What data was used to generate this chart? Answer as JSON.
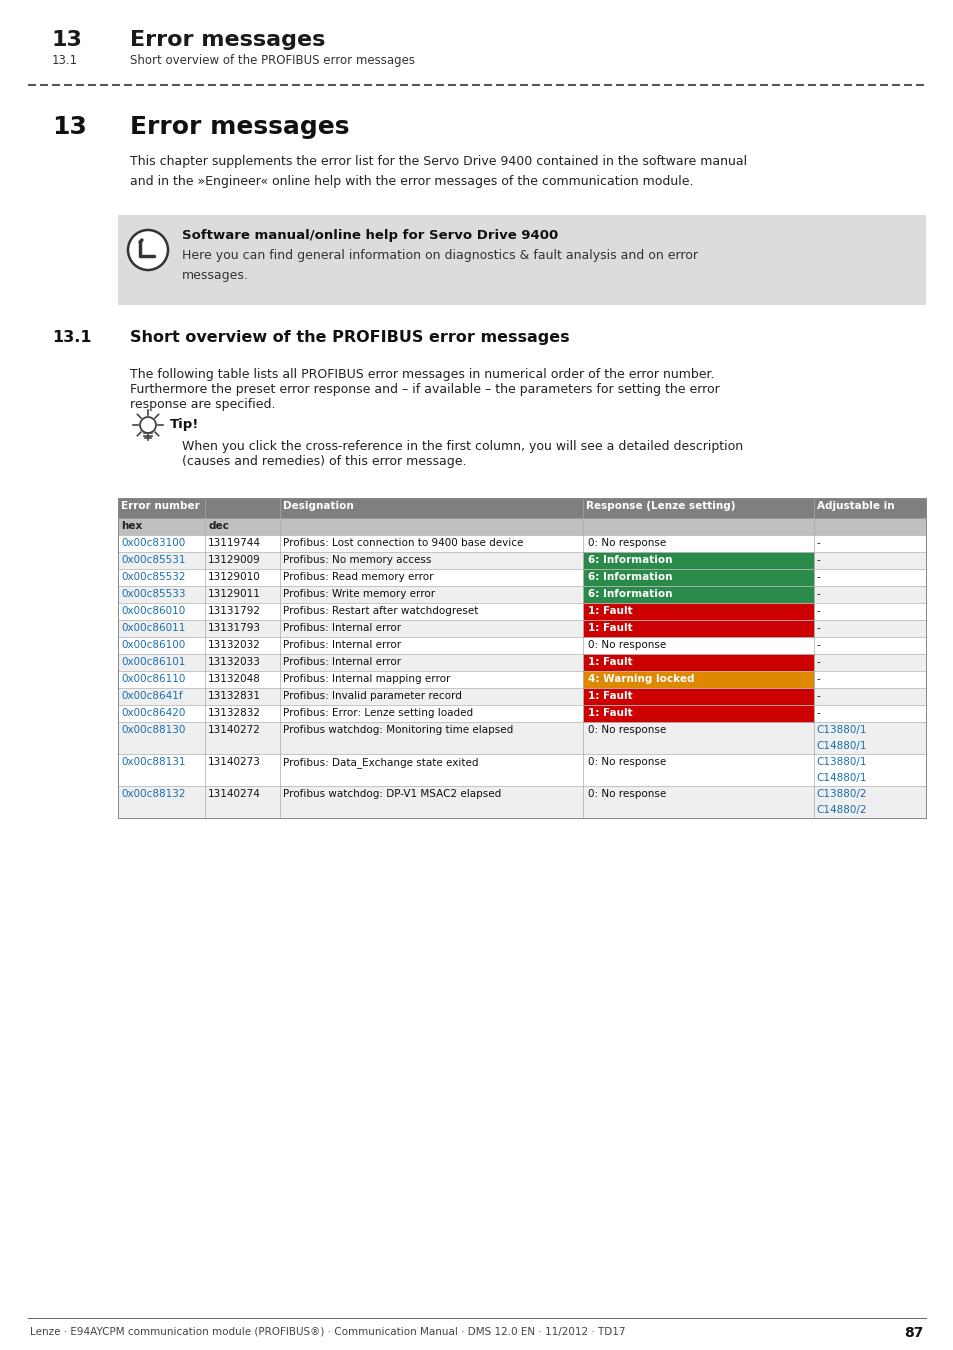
{
  "page_bg": "#ffffff",
  "header_chapter": "13",
  "header_title": "Error messages",
  "header_sub": "13.1",
  "header_sub_title": "Short overview of the PROFIBUS error messages",
  "section_number": "13",
  "section_title": "Error messages",
  "intro_text": "This chapter supplements the error list for the Servo Drive 9400 contained in the software manual\nand in the »Engineer« online help with the error messages of the communication module.",
  "note_bg": "#dcdcdc",
  "note_bold": "Software manual/online help for Servo Drive 9400",
  "note_body": "Here you can find general information on diagnostics & fault analysis and on error\nmessages.",
  "subsection_number": "13.1",
  "subsection_title": "Short overview of the PROFIBUS error messages",
  "body_text_line1": "The following table lists all PROFIBUS error messages in numerical order of the error number.",
  "body_text_line2": "Furthermore the preset error response and – if available – the parameters for setting the error",
  "body_text_line3": "response are specified.",
  "tip_bold": "Tip!",
  "tip_text_line1": "When you click the cross-reference in the first column, you will see a detailed description",
  "tip_text_line2": "(causes and remedies) of this error message.",
  "table_header_bg": "#7f7f7f",
  "table_subheader_bg": "#bfbfbf",
  "table_row_bg_even": "#ffffff",
  "table_row_bg_odd": "#efefef",
  "rows": [
    {
      "hex": "0x00c83100",
      "dec": "13119744",
      "designation": "Profibus: Lost connection to 9400 base device",
      "response": "0: No response",
      "response_bg": null,
      "adjustable": "-"
    },
    {
      "hex": "0x00c85531",
      "dec": "13129009",
      "designation": "Profibus: No memory access",
      "response": "6: Information",
      "response_bg": "#2a8a4a",
      "adjustable": "-"
    },
    {
      "hex": "0x00c85532",
      "dec": "13129010",
      "designation": "Profibus: Read memory error",
      "response": "6: Information",
      "response_bg": "#2a8a4a",
      "adjustable": "-"
    },
    {
      "hex": "0x00c85533",
      "dec": "13129011",
      "designation": "Profibus: Write memory error",
      "response": "6: Information",
      "response_bg": "#2a8a4a",
      "adjustable": "-"
    },
    {
      "hex": "0x00c86010",
      "dec": "13131792",
      "designation": "Profibus: Restart after watchdogreset",
      "response": "1: Fault",
      "response_bg": "#cc0000",
      "adjustable": "-"
    },
    {
      "hex": "0x00c86011",
      "dec": "13131793",
      "designation": "Profibus: Internal error",
      "response": "1: Fault",
      "response_bg": "#cc0000",
      "adjustable": "-"
    },
    {
      "hex": "0x00c86100",
      "dec": "13132032",
      "designation": "Profibus: Internal error",
      "response": "0: No response",
      "response_bg": null,
      "adjustable": "-"
    },
    {
      "hex": "0x00c86101",
      "dec": "13132033",
      "designation": "Profibus: Internal error",
      "response": "1: Fault",
      "response_bg": "#cc0000",
      "adjustable": "-"
    },
    {
      "hex": "0x00c86110",
      "dec": "13132048",
      "designation": "Profibus: Internal mapping error",
      "response": "4: Warning locked",
      "response_bg": "#dd8800",
      "adjustable": "-"
    },
    {
      "hex": "0x00c8641f",
      "dec": "13132831",
      "designation": "Profibus: Invalid parameter record",
      "response": "1: Fault",
      "response_bg": "#cc0000",
      "adjustable": "-"
    },
    {
      "hex": "0x00c86420",
      "dec": "13132832",
      "designation": "Profibus: Error: Lenze setting loaded",
      "response": "1: Fault",
      "response_bg": "#cc0000",
      "adjustable": "-"
    },
    {
      "hex": "0x00c88130",
      "dec": "13140272",
      "designation": "Profibus watchdog: Monitoring time elapsed",
      "response": "0: No response",
      "response_bg": null,
      "adjustable": "C13880/1\nC14880/1"
    },
    {
      "hex": "0x00c88131",
      "dec": "13140273",
      "designation": "Profibus: Data_Exchange state exited",
      "response": "0: No response",
      "response_bg": null,
      "adjustable": "C13880/1\nC14880/1"
    },
    {
      "hex": "0x00c88132",
      "dec": "13140274",
      "designation": "Profibus watchdog: DP-V1 MSAC2 elapsed",
      "response": "0: No response",
      "response_bg": null,
      "adjustable": "C13880/2\nC14880/2"
    }
  ],
  "footer_text": "Lenze · E94AYCPM communication module (PROFIBUS®) · Communication Manual · DMS 12.0 EN · 11/2012 · TD17",
  "footer_page": "87",
  "link_color": "#1a6faf",
  "adj_color": "#1a6faf"
}
